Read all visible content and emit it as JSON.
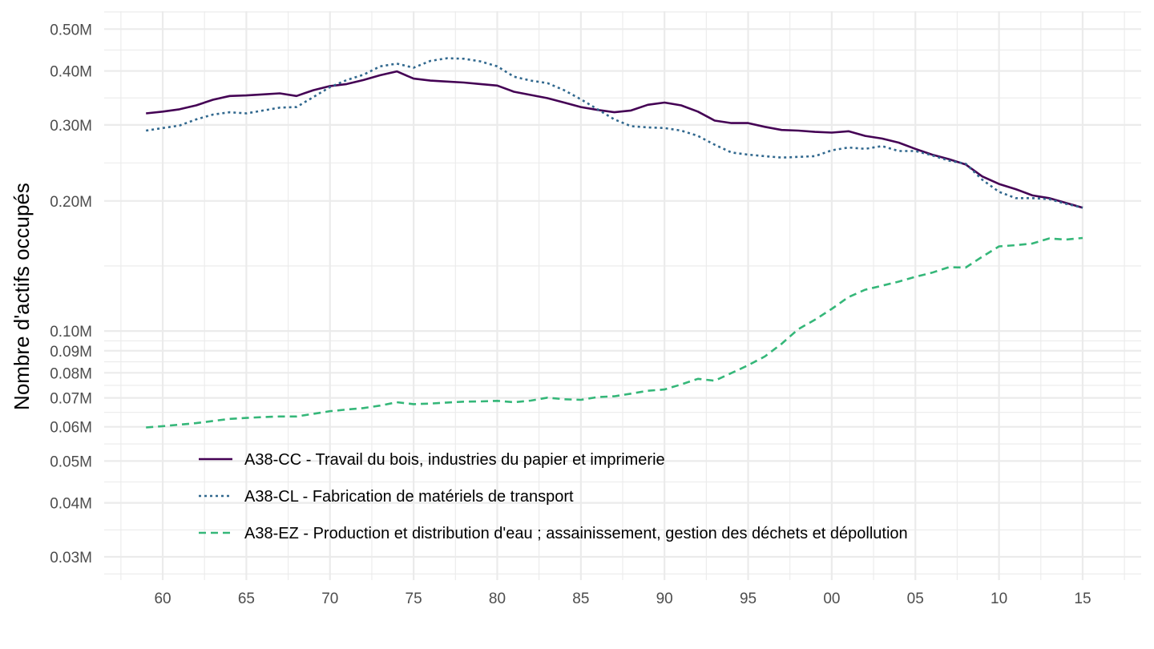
{
  "chart_data": {
    "type": "line",
    "title": "",
    "xlabel": "",
    "ylabel": "Nombre d'actifs occupés",
    "yscale": "log",
    "ylim": [
      0.0265,
      0.55
    ],
    "xlim": [
      1956.5,
      2018.5
    ],
    "grid": true,
    "legend_position": "inside-bottom-left",
    "x_ticks": [
      {
        "value": 1960,
        "label": "60"
      },
      {
        "value": 1965,
        "label": "65"
      },
      {
        "value": 1970,
        "label": "70"
      },
      {
        "value": 1975,
        "label": "75"
      },
      {
        "value": 1980,
        "label": "80"
      },
      {
        "value": 1985,
        "label": "85"
      },
      {
        "value": 1990,
        "label": "90"
      },
      {
        "value": 1995,
        "label": "95"
      },
      {
        "value": 2000,
        "label": "00"
      },
      {
        "value": 2005,
        "label": "05"
      },
      {
        "value": 2010,
        "label": "10"
      },
      {
        "value": 2015,
        "label": "15"
      }
    ],
    "y_ticks": [
      {
        "value": 0.03,
        "label": "0.03M"
      },
      {
        "value": 0.04,
        "label": "0.04M"
      },
      {
        "value": 0.05,
        "label": "0.05M"
      },
      {
        "value": 0.06,
        "label": "0.06M"
      },
      {
        "value": 0.07,
        "label": "0.07M"
      },
      {
        "value": 0.08,
        "label": "0.08M"
      },
      {
        "value": 0.09,
        "label": "0.09M"
      },
      {
        "value": 0.1,
        "label": "0.10M"
      },
      {
        "value": 0.2,
        "label": "0.20M"
      },
      {
        "value": 0.3,
        "label": "0.30M"
      },
      {
        "value": 0.4,
        "label": "0.40M"
      },
      {
        "value": 0.5,
        "label": "0.50M"
      }
    ],
    "x": [
      1959,
      1960,
      1961,
      1962,
      1963,
      1964,
      1965,
      1966,
      1967,
      1968,
      1969,
      1970,
      1971,
      1972,
      1973,
      1974,
      1975,
      1976,
      1977,
      1978,
      1979,
      1980,
      1981,
      1982,
      1983,
      1984,
      1985,
      1986,
      1987,
      1988,
      1989,
      1990,
      1991,
      1992,
      1993,
      1994,
      1995,
      1996,
      1997,
      1998,
      1999,
      2000,
      2001,
      2002,
      2003,
      2004,
      2005,
      2006,
      2007,
      2008,
      2009,
      2010,
      2011,
      2012,
      2013,
      2014,
      2015
    ],
    "series": [
      {
        "name": "A38-CC - Travail du bois, industries du papier et imprimerie",
        "color": "#440154",
        "dash": "solid",
        "values": [
          0.319,
          0.322,
          0.326,
          0.333,
          0.343,
          0.35,
          0.351,
          0.353,
          0.355,
          0.35,
          0.361,
          0.369,
          0.373,
          0.381,
          0.391,
          0.399,
          0.384,
          0.38,
          0.378,
          0.376,
          0.373,
          0.37,
          0.358,
          0.352,
          0.346,
          0.338,
          0.33,
          0.325,
          0.321,
          0.324,
          0.334,
          0.338,
          0.333,
          0.322,
          0.307,
          0.303,
          0.303,
          0.297,
          0.292,
          0.291,
          0.289,
          0.288,
          0.29,
          0.283,
          0.279,
          0.273,
          0.264,
          0.256,
          0.25,
          0.243,
          0.228,
          0.219,
          0.213,
          0.206,
          0.203,
          0.198,
          0.193
        ]
      },
      {
        "name": "A38-CL - Fabrication de matériels de transport",
        "color": "#31688E",
        "dash": "dotted",
        "values": [
          0.291,
          0.295,
          0.299,
          0.309,
          0.317,
          0.321,
          0.319,
          0.324,
          0.329,
          0.33,
          0.348,
          0.367,
          0.381,
          0.392,
          0.41,
          0.416,
          0.407,
          0.422,
          0.428,
          0.427,
          0.421,
          0.41,
          0.388,
          0.38,
          0.375,
          0.361,
          0.344,
          0.326,
          0.309,
          0.298,
          0.296,
          0.295,
          0.291,
          0.283,
          0.27,
          0.259,
          0.256,
          0.254,
          0.252,
          0.253,
          0.254,
          0.262,
          0.266,
          0.264,
          0.268,
          0.261,
          0.261,
          0.255,
          0.248,
          0.244,
          0.224,
          0.21,
          0.203,
          0.203,
          0.202,
          0.197,
          0.193
        ]
      },
      {
        "name": "A38-EZ - Production et distribution d'eau ; assainissement, gestion des déchets et dépollution",
        "color": "#35B779",
        "dash": "dashed",
        "values": [
          0.0598,
          0.0602,
          0.0607,
          0.0612,
          0.0619,
          0.0626,
          0.0629,
          0.0632,
          0.0634,
          0.0634,
          0.0643,
          0.0652,
          0.0658,
          0.0663,
          0.0672,
          0.0684,
          0.0677,
          0.0679,
          0.0683,
          0.0686,
          0.0687,
          0.0689,
          0.0684,
          0.069,
          0.0701,
          0.0695,
          0.0693,
          0.0703,
          0.0706,
          0.0716,
          0.0727,
          0.0732,
          0.0752,
          0.0775,
          0.0767,
          0.0799,
          0.0833,
          0.0873,
          0.0934,
          0.101,
          0.1062,
          0.1125,
          0.1198,
          0.1246,
          0.1273,
          0.1301,
          0.1335,
          0.1365,
          0.1405,
          0.1402,
          0.1486,
          0.157,
          0.158,
          0.1594,
          0.1638,
          0.1628,
          0.1642
        ]
      }
    ]
  }
}
